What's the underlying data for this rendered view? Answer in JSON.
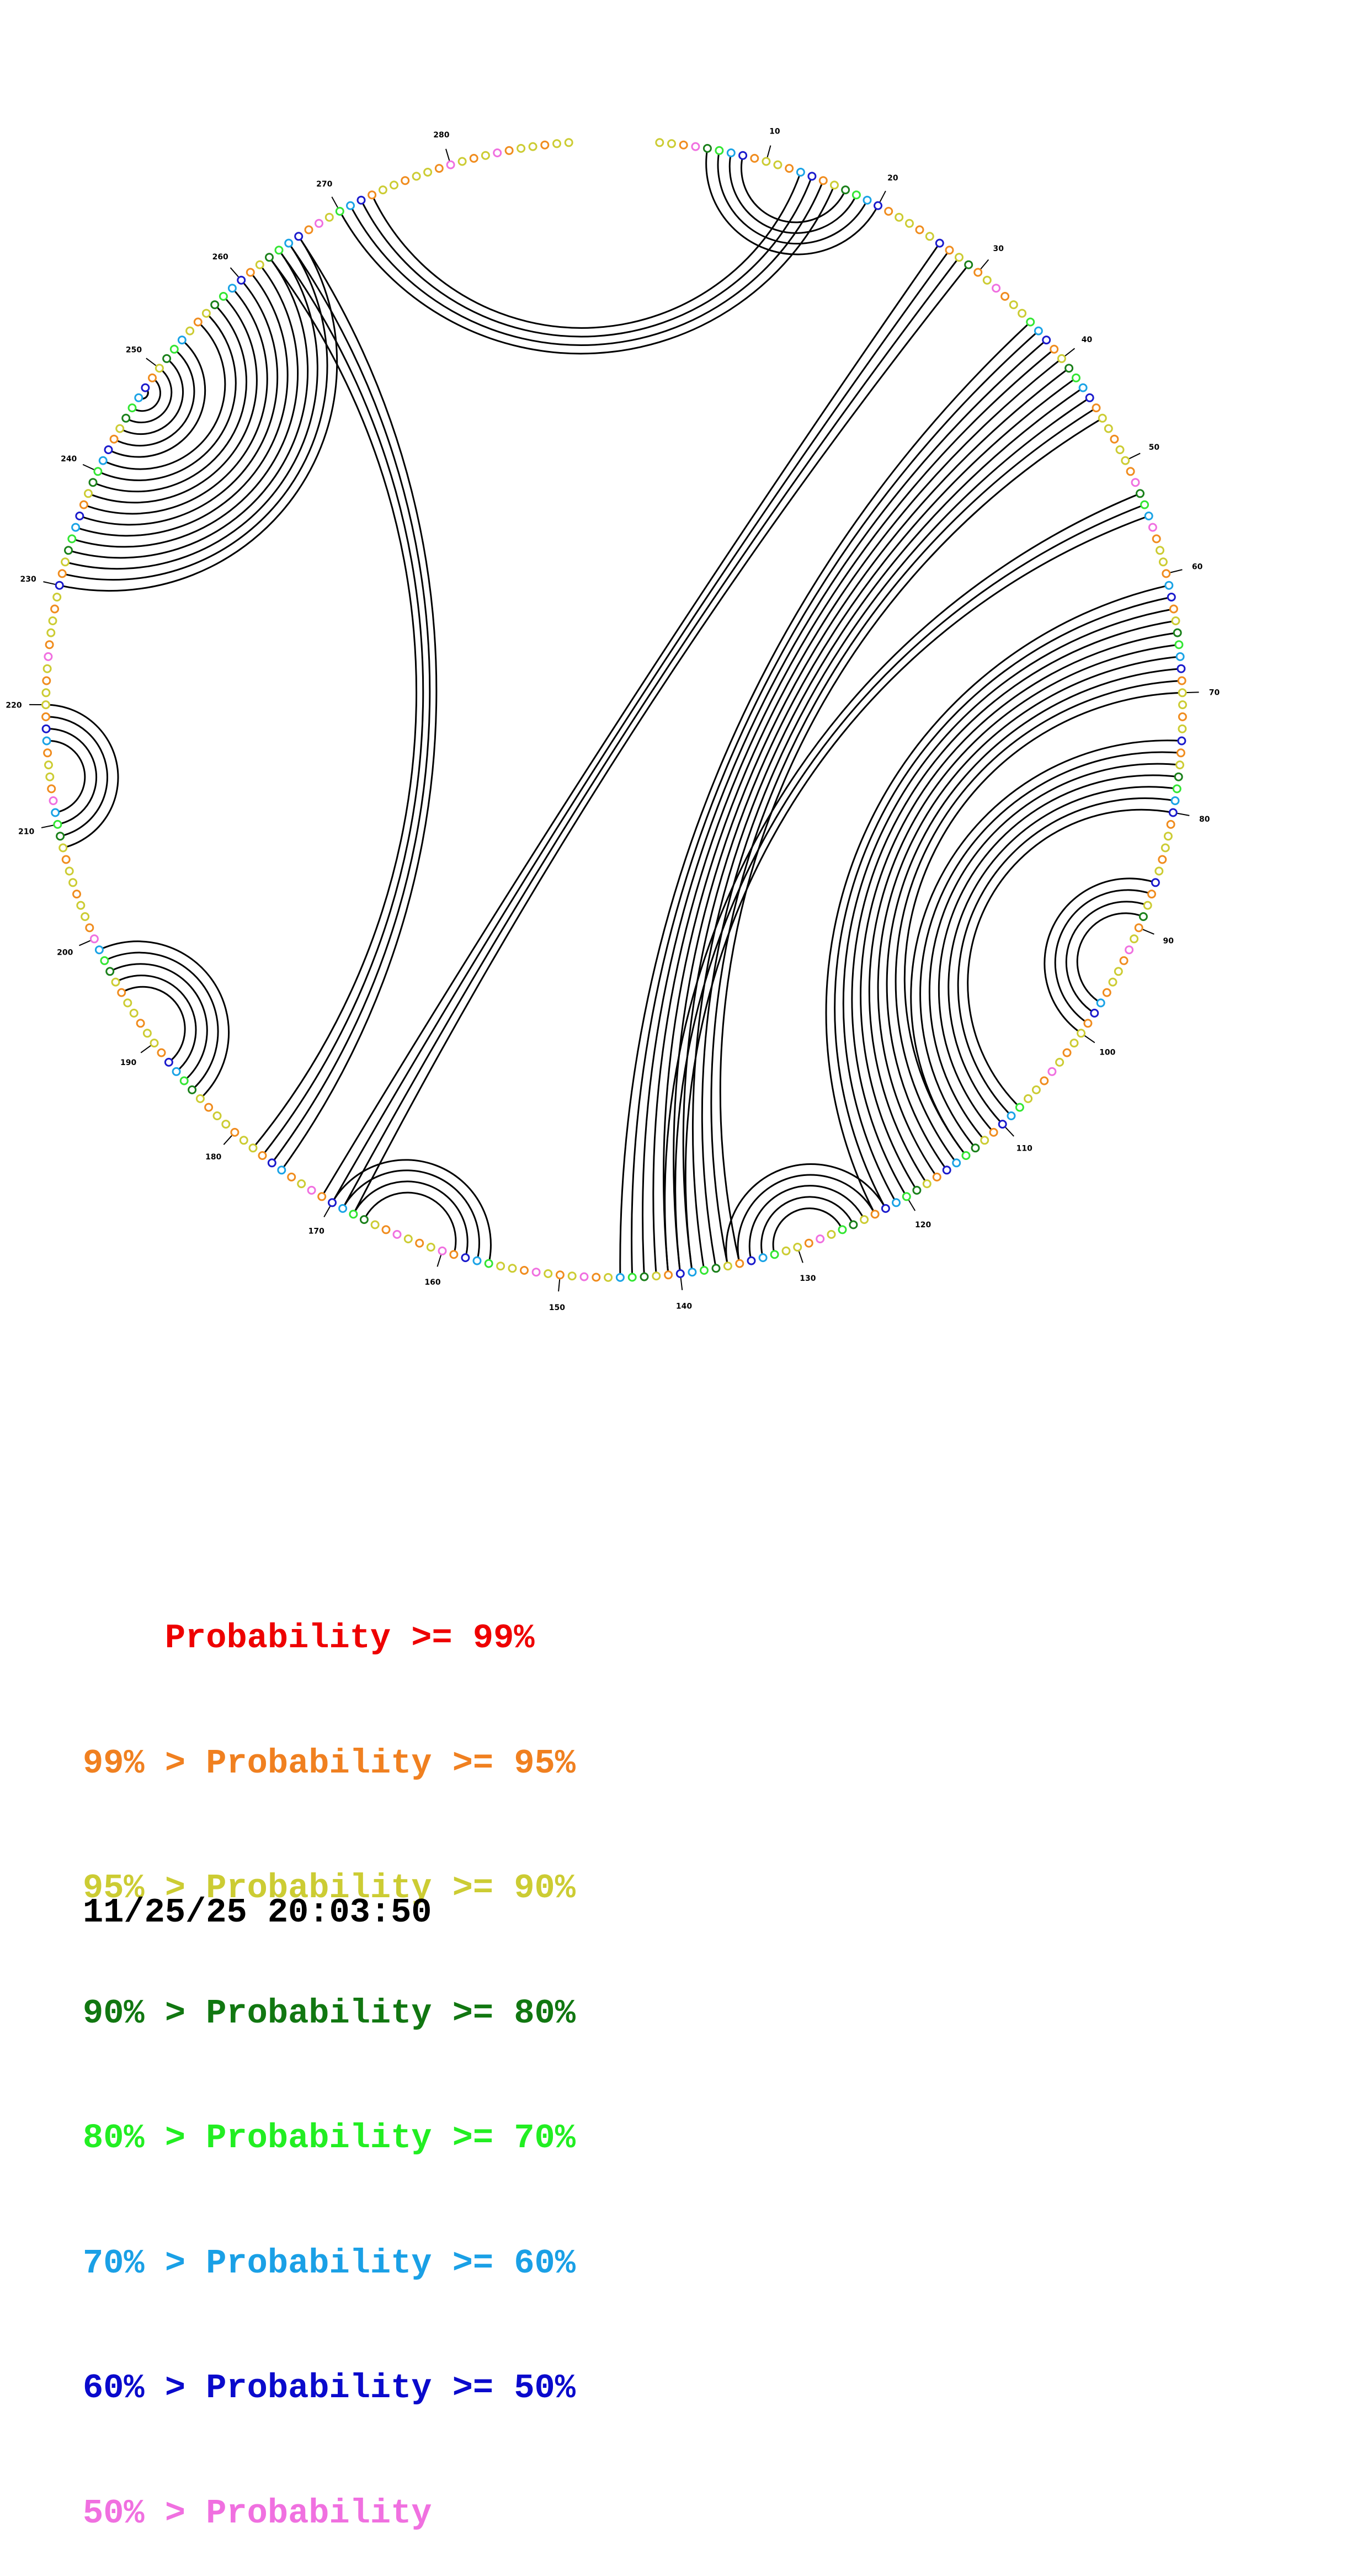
{
  "rna": {
    "length": 290,
    "base_colors": {
      "0": "#ff1a1a",
      "1": "#f08c1e",
      "2": "#cccc33",
      "3": "#1a801a",
      "4": "#33e633",
      "5": "#1aa3e6",
      "6": "#1a1acc",
      "7": "#f070e0"
    },
    "position_ticks": [
      10,
      20,
      30,
      40,
      50,
      60,
      70,
      80,
      90,
      100,
      110,
      120,
      130,
      140,
      150,
      160,
      170,
      180,
      190,
      200,
      210,
      220,
      230,
      240,
      250,
      260,
      270,
      280
    ],
    "helices": [
      {
        "i": 5,
        "j": 20,
        "n": 4
      },
      {
        "i": 13,
        "j": 273,
        "n": 4
      },
      {
        "i": 26,
        "j": 171,
        "n": 4
      },
      {
        "i": 36,
        "j": 145,
        "n": 11
      },
      {
        "i": 53,
        "j": 141,
        "n": 3
      },
      {
        "i": 61,
        "j": 123,
        "n": 10
      },
      {
        "i": 74,
        "j": 114,
        "n": 7
      },
      {
        "i": 86,
        "j": 100,
        "n": 4
      },
      {
        "i": 122,
        "j": 136,
        "n": 5
      },
      {
        "i": 156,
        "j": 170,
        "n": 4
      },
      {
        "i": 184,
        "j": 199,
        "n": 5
      },
      {
        "i": 208,
        "j": 220,
        "n": 4
      },
      {
        "i": 230,
        "j": 266,
        "n": 12
      },
      {
        "i": 242,
        "j": 253,
        "n": 7
      },
      {
        "i": 263,
        "j": 178,
        "n": 4
      }
    ]
  },
  "legend": [
    {
      "prefix": "    ",
      "label": "Probability >= 99%",
      "color": "#ee0000"
    },
    {
      "prefix": "99% > ",
      "label": "Probability >= 95%",
      "color": "#f08020"
    },
    {
      "prefix": "95% > ",
      "label": "Probability >= 90%",
      "color": "#cccc33"
    },
    {
      "prefix": "90% > ",
      "label": "Probability >= 80%",
      "color": "#117711"
    },
    {
      "prefix": "80% > ",
      "label": "Probability >= 70%",
      "color": "#22ee22"
    },
    {
      "prefix": "70% > ",
      "label": "Probability >= 60%",
      "color": "#1aa0e6"
    },
    {
      "prefix": "60% > ",
      "label": "Probability >= 50%",
      "color": "#0a0acc"
    },
    {
      "prefix": "50% > ",
      "label": "Probability",
      "color": "#f070e0"
    }
  ],
  "timestamp": "11/25/25 20:03:50"
}
